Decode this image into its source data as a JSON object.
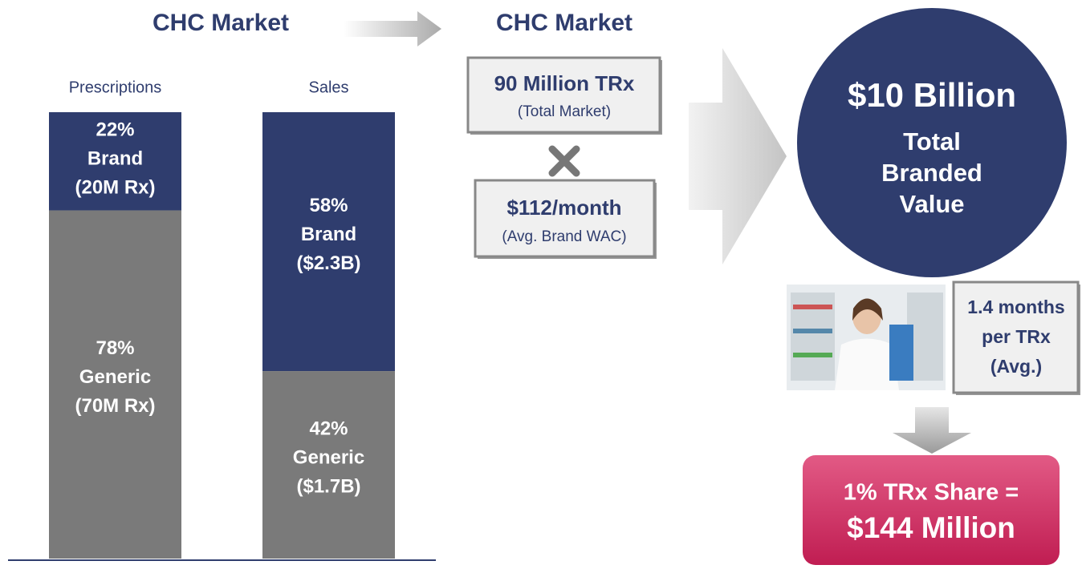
{
  "left": {
    "title": "CHC Market",
    "bars": [
      {
        "label": "Prescriptions",
        "segments": [
          {
            "value": 22,
            "lines": [
              "22%",
              "Brand",
              "(20M Rx)"
            ],
            "color": "#2f3d6e"
          },
          {
            "value": 78,
            "lines": [
              "78%",
              "Generic",
              "(70M Rx)"
            ],
            "color": "#7a7a7a"
          }
        ]
      },
      {
        "label": "Sales",
        "segments": [
          {
            "value": 58,
            "lines": [
              "58%",
              "Brand",
              "($2.3B)"
            ],
            "color": "#2f3d6e"
          },
          {
            "value": 42,
            "lines": [
              "42%",
              "Generic",
              "($1.7B)"
            ],
            "color": "#7a7a7a"
          }
        ]
      }
    ]
  },
  "right": {
    "title": "CHC Market",
    "box1": {
      "main": "90 Million TRx",
      "sub": "(Total Market)"
    },
    "box2": {
      "main": "$112/month",
      "sub": "(Avg. Brand WAC)"
    },
    "circle": {
      "main": "$10 Billion",
      "lines": [
        "Total",
        "Branded",
        "Value"
      ]
    },
    "duration": {
      "lines": [
        "1.4 months",
        "per TRx",
        "(Avg.)"
      ]
    },
    "result": {
      "lines": [
        "1% TRx Share =",
        "$144 Million"
      ]
    }
  }
}
